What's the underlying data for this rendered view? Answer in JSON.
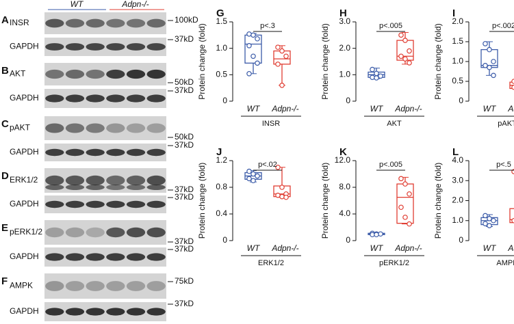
{
  "blots": {
    "groups": [
      "WT",
      "Adpn-/-"
    ],
    "panels": [
      {
        "letter": "A",
        "rows": [
          {
            "label": "INSR",
            "marker": "100kD"
          },
          {
            "label": "GAPDH",
            "marker": "37kD"
          }
        ]
      },
      {
        "letter": "B",
        "rows": [
          {
            "label": "AKT",
            "marker": "50kD"
          },
          {
            "label": "GAPDH",
            "marker": "37kD"
          }
        ]
      },
      {
        "letter": "C",
        "rows": [
          {
            "label": "pAKT",
            "marker": "50kD"
          },
          {
            "label": "GAPDH",
            "marker": "37kD"
          }
        ]
      },
      {
        "letter": "D",
        "rows": [
          {
            "label": "ERK1/2",
            "marker": "37kD"
          },
          {
            "label": "GAPDH",
            "marker": "37kD"
          }
        ]
      },
      {
        "letter": "E",
        "rows": [
          {
            "label": "pERK1/2",
            "marker": "37kD"
          },
          {
            "label": "GAPDH",
            "marker": "37kD"
          }
        ]
      },
      {
        "letter": "F",
        "rows": [
          {
            "label": "AMPK",
            "marker": "75kD"
          },
          {
            "label": "GAPDH",
            "marker": "37kD"
          }
        ]
      }
    ]
  },
  "chart_data": [
    {
      "type": "box",
      "panel": "G",
      "ylabel": "Protein change (fold)",
      "xlabel": "INSR",
      "annotation": "p<.3",
      "ylim": [
        0,
        1.5
      ],
      "yticks": [
        0,
        0.5,
        {
          "value": 1,
          "label": "1.0"
        },
        1.5
      ],
      "series": [
        {
          "name": "WT",
          "color": "#3a5aa8",
          "min": 0.52,
          "q1": 0.72,
          "median": 1.08,
          "q3": 1.25,
          "max": 1.28,
          "points": [
            1.27,
            1.25,
            1.18,
            1.05,
            0.85,
            0.72,
            0.52
          ]
        },
        {
          "name": "Adpn-/-",
          "color": "#e03c31",
          "min": 0.3,
          "q1": 0.7,
          "median": 0.8,
          "q3": 0.95,
          "max": 1.05,
          "points": [
            1.02,
            0.95,
            0.85,
            0.7,
            0.3
          ]
        }
      ]
    },
    {
      "type": "box",
      "panel": "H",
      "ylabel": "Protein change (fold)",
      "xlabel": "AKT",
      "annotation": "p<.005",
      "ylim": [
        0,
        3
      ],
      "yticks": [
        0,
        {
          "value": 1,
          "label": "1.0"
        },
        {
          "value": 2,
          "label": "2.0"
        },
        {
          "value": 3,
          "label": "3.0"
        }
      ],
      "series": [
        {
          "name": "WT",
          "color": "#3a5aa8",
          "min": 0.85,
          "q1": 0.9,
          "median": 1.0,
          "q3": 1.1,
          "max": 1.25,
          "points": [
            1.2,
            1.05,
            0.95,
            0.9,
            0.88
          ]
        },
        {
          "name": "Adpn-/-",
          "color": "#e03c31",
          "min": 1.4,
          "q1": 1.55,
          "median": 1.7,
          "q3": 2.3,
          "max": 2.6,
          "points": [
            2.5,
            2.3,
            1.9,
            1.7,
            1.6,
            1.45
          ]
        }
      ]
    },
    {
      "type": "box",
      "panel": "I",
      "ylabel": "Protein change (fold)",
      "xlabel": "pAKT",
      "annotation": "p<.002",
      "ylim": [
        0,
        2
      ],
      "yticks": [
        0,
        0.5,
        {
          "value": 1,
          "label": "1.0"
        },
        1.5,
        {
          "value": 2,
          "label": "2.0"
        }
      ],
      "series": [
        {
          "name": "WT",
          "color": "#3a5aa8",
          "min": 0.65,
          "q1": 0.85,
          "median": 0.9,
          "q3": 1.3,
          "max": 1.5,
          "points": [
            1.45,
            1.3,
            1.0,
            0.9,
            0.85,
            0.65
          ]
        },
        {
          "name": "Adpn-/-",
          "color": "#e03c31",
          "min": 0.3,
          "q1": 0.32,
          "median": 0.4,
          "q3": 0.48,
          "max": 0.52,
          "points": [
            0.5,
            0.45,
            0.4,
            0.35,
            0.32,
            0.3
          ]
        }
      ]
    },
    {
      "type": "box",
      "panel": "J",
      "ylabel": "Protein change (fold)",
      "xlabel": "ERK1/2",
      "annotation": "p<.02",
      "ylim": [
        0,
        1.2
      ],
      "yticks": [
        0,
        0.4,
        0.8,
        1.2
      ],
      "series": [
        {
          "name": "WT",
          "color": "#3a5aa8",
          "min": 0.88,
          "q1": 0.92,
          "median": 0.97,
          "q3": 1.02,
          "max": 1.05,
          "points": [
            1.04,
            1.0,
            0.97,
            0.93,
            0.9
          ]
        },
        {
          "name": "Adpn-/-",
          "color": "#e03c31",
          "min": 0.65,
          "q1": 0.66,
          "median": 0.7,
          "q3": 0.82,
          "max": 1.1,
          "points": [
            1.1,
            0.8,
            0.7,
            0.68,
            0.66,
            0.65
          ]
        }
      ]
    },
    {
      "type": "box",
      "panel": "K",
      "ylabel": "Protein change (fold)",
      "xlabel": "pERK1/2",
      "annotation": "p<.005",
      "ylim": [
        0,
        12
      ],
      "yticks": [
        0,
        {
          "value": 4,
          "label": "4.0"
        },
        {
          "value": 8,
          "label": "8.0"
        },
        {
          "value": 12,
          "label": "12.0"
        }
      ],
      "series": [
        {
          "name": "WT",
          "color": "#3a5aa8",
          "min": 0.8,
          "q1": 0.9,
          "median": 1.0,
          "q3": 1.1,
          "max": 1.2,
          "points": [
            1.1,
            1.0,
            1.0,
            0.9,
            0.9
          ]
        },
        {
          "name": "Adpn-/-",
          "color": "#e03c31",
          "min": 2.5,
          "q1": 2.6,
          "median": 6.5,
          "q3": 8.5,
          "max": 9.5,
          "points": [
            9.3,
            8.5,
            7.0,
            5.0,
            3.5,
            2.5
          ]
        }
      ]
    },
    {
      "type": "box",
      "panel": "L",
      "ylabel": "Protein change (fold)",
      "xlabel": "AMPK",
      "annotation": "p<.5",
      "ylim": [
        0,
        4
      ],
      "yticks": [
        0,
        {
          "value": 1,
          "label": "1.0"
        },
        {
          "value": 2,
          "label": "2.0"
        },
        {
          "value": 3,
          "label": "3.0"
        },
        {
          "value": 4,
          "label": "4.0"
        }
      ],
      "series": [
        {
          "name": "WT",
          "color": "#3a5aa8",
          "min": 0.7,
          "q1": 0.8,
          "median": 1.0,
          "q3": 1.15,
          "max": 1.3,
          "points": [
            1.25,
            1.1,
            1.0,
            0.85,
            0.75
          ]
        },
        {
          "name": "Adpn-/-",
          "color": "#e03c31",
          "min": 0.85,
          "q1": 0.9,
          "median": 1.05,
          "q3": 1.6,
          "max": 3.45,
          "points": [
            3.45,
            1.5,
            1.1,
            1.0,
            0.9,
            0.88
          ]
        }
      ]
    }
  ]
}
